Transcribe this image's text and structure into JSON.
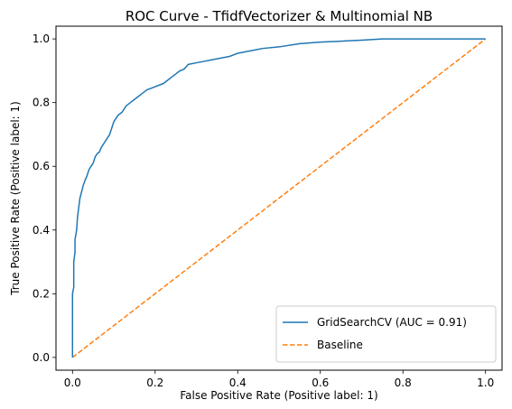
{
  "chart_data": {
    "type": "line",
    "title": "ROC Curve - TfidfVectorizer & Multinomial NB",
    "xlabel": "False Positive Rate (Positive label: 1)",
    "ylabel": "True Positive Rate (Positive label: 1)",
    "xlim": [
      -0.04,
      1.04
    ],
    "ylim": [
      -0.04,
      1.04
    ],
    "x_ticks": [
      0.0,
      0.2,
      0.4,
      0.6,
      0.8,
      1.0
    ],
    "y_ticks": [
      0.0,
      0.2,
      0.4,
      0.6,
      0.8,
      1.0
    ],
    "x_tick_labels": [
      "0.0",
      "0.2",
      "0.4",
      "0.6",
      "0.8",
      "1.0"
    ],
    "y_tick_labels": [
      "0.0",
      "0.2",
      "0.4",
      "0.6",
      "0.8",
      "1.0"
    ],
    "grid": false,
    "legend_position": "lower-right",
    "series": [
      {
        "name": "GridSearchCV (AUC = 0.91)",
        "color": "#1f77b4",
        "style": "solid",
        "x": [
          0,
          0,
          0.003,
          0.003,
          0.006,
          0.006,
          0.01,
          0.012,
          0.015,
          0.018,
          0.022,
          0.026,
          0.03,
          0.035,
          0.04,
          0.045,
          0.05,
          0.055,
          0.06,
          0.065,
          0.07,
          0.075,
          0.08,
          0.085,
          0.09,
          0.095,
          0.1,
          0.11,
          0.12,
          0.13,
          0.14,
          0.15,
          0.16,
          0.17,
          0.18,
          0.19,
          0.2,
          0.21,
          0.22,
          0.23,
          0.24,
          0.25,
          0.26,
          0.27,
          0.28,
          0.3,
          0.32,
          0.34,
          0.36,
          0.38,
          0.4,
          0.42,
          0.44,
          0.46,
          0.5,
          0.55,
          0.6,
          0.65,
          0.7,
          0.75,
          0.8,
          0.85,
          0.9,
          0.95,
          1.0
        ],
        "y": [
          0,
          0.2,
          0.22,
          0.3,
          0.33,
          0.37,
          0.4,
          0.44,
          0.47,
          0.5,
          0.52,
          0.54,
          0.555,
          0.57,
          0.59,
          0.6,
          0.61,
          0.63,
          0.64,
          0.645,
          0.66,
          0.67,
          0.68,
          0.69,
          0.7,
          0.72,
          0.74,
          0.76,
          0.77,
          0.79,
          0.8,
          0.81,
          0.82,
          0.83,
          0.84,
          0.845,
          0.85,
          0.855,
          0.86,
          0.87,
          0.88,
          0.89,
          0.9,
          0.905,
          0.92,
          0.925,
          0.93,
          0.935,
          0.94,
          0.945,
          0.955,
          0.96,
          0.965,
          0.97,
          0.975,
          0.985,
          0.99,
          0.993,
          0.996,
          1.0,
          1.0,
          1.0,
          1.0,
          1.0,
          1.0
        ]
      },
      {
        "name": "Baseline",
        "color": "#ff7f0e",
        "style": "dashed",
        "x": [
          0,
          1
        ],
        "y": [
          0,
          1
        ]
      }
    ]
  }
}
